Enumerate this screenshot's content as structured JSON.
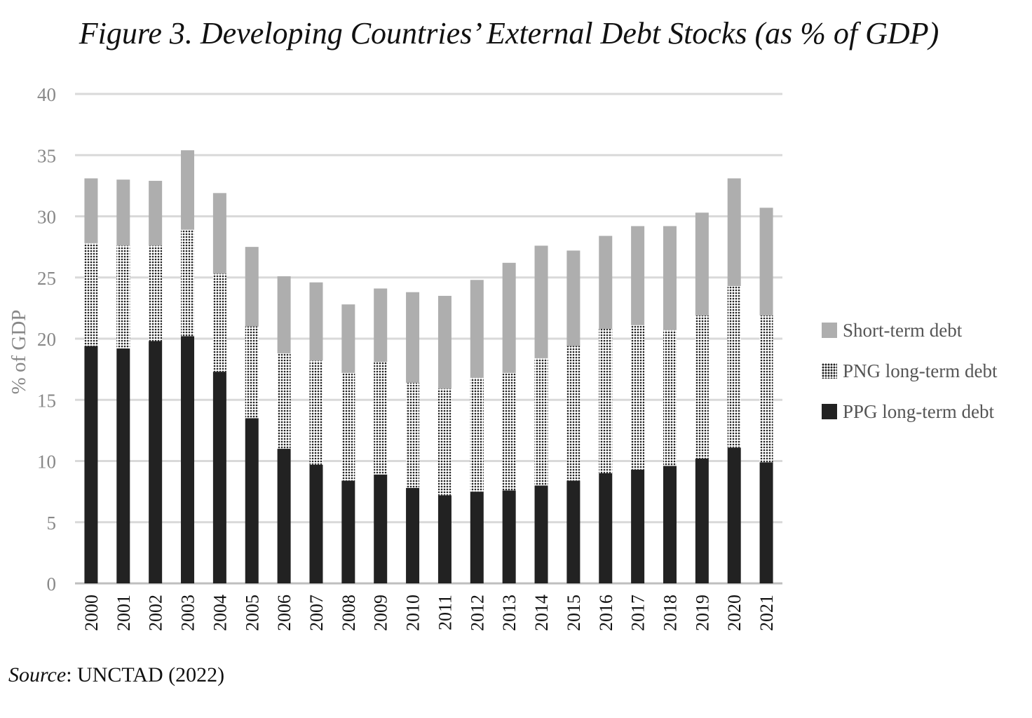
{
  "figure": {
    "title": "Figure 3.  Developing Countries’ External Debt Stocks (as % of GDP)",
    "source_label": "Source",
    "source_text": ": UNCTAD (2022)"
  },
  "colors": {
    "short_term": "#aeaeae",
    "ppg": "#222222",
    "png_dots": "#222222",
    "grid": "#d9d9d9"
  },
  "chart_data": {
    "type": "bar",
    "stacked": true,
    "title": "Figure 3.  Developing Countries’ External Debt Stocks (as % of GDP)",
    "xlabel": "",
    "ylabel": "% of GDP",
    "ylim": [
      0,
      40
    ],
    "yticks": [
      "0",
      "5",
      "10",
      "15",
      "20",
      "25",
      "30",
      "35",
      "40"
    ],
    "grid": true,
    "legend_position": "right",
    "categories": [
      "2000",
      "2001",
      "2002",
      "2003",
      "2004",
      "2005",
      "2006",
      "2007",
      "2008",
      "2009",
      "2010",
      "2011",
      "2012",
      "2013",
      "2014",
      "2015",
      "2016",
      "2017",
      "2018",
      "2019",
      "2020",
      "2021"
    ],
    "series": [
      {
        "name": "PPG long-term debt",
        "values": [
          19.4,
          19.2,
          19.8,
          20.2,
          17.3,
          13.5,
          11.0,
          9.7,
          8.4,
          8.9,
          7.8,
          7.2,
          7.5,
          7.6,
          8.0,
          8.4,
          9.0,
          9.3,
          9.6,
          10.2,
          11.1,
          9.9
        ]
      },
      {
        "name": "PNG long-term debt",
        "values": [
          8.4,
          8.4,
          7.8,
          8.7,
          8.0,
          7.5,
          7.8,
          8.5,
          8.8,
          9.2,
          8.6,
          8.7,
          9.3,
          9.6,
          10.4,
          11.0,
          11.8,
          11.8,
          11.1,
          11.7,
          13.2,
          12.0
        ]
      },
      {
        "name": "Short-term debt",
        "values": [
          5.3,
          5.4,
          5.3,
          6.5,
          6.6,
          6.5,
          6.3,
          6.4,
          5.6,
          6.0,
          7.4,
          7.6,
          8.0,
          9.0,
          9.2,
          7.8,
          7.6,
          8.1,
          8.5,
          8.4,
          8.8,
          8.8
        ]
      }
    ],
    "legend": [
      "Short-term debt",
      "PNG long-term debt",
      "PPG long-term debt"
    ]
  }
}
